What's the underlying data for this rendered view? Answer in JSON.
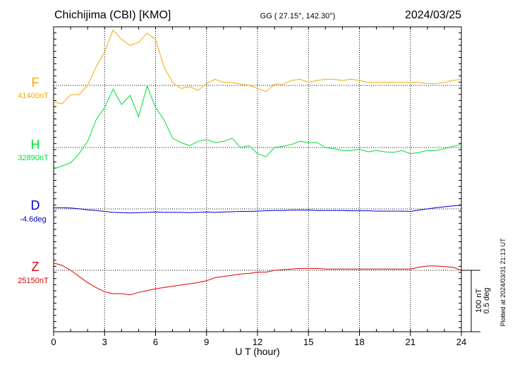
{
  "header": {
    "station": "Chichijima (CBI)  [KMO]",
    "coords": "GG ( 27.15°, 142.30°)",
    "date": "2024/03/25"
  },
  "colors": {
    "F": "#f5a800",
    "H": "#00dd33",
    "D": "#0000cc",
    "Z": "#dd0000"
  },
  "scale_bar": {
    "label_nt": "100 nT",
    "label_deg": "0.5 deg"
  },
  "plotted_note": "Plotted at 2024/03/31 21:13 UT",
  "chart_data": {
    "type": "line",
    "xlabel": "U T (hour)",
    "xlim": [
      0,
      24
    ],
    "x_ticks": [
      "0",
      "3",
      "6",
      "9",
      "12",
      "15",
      "18",
      "21",
      "24"
    ],
    "grid": true,
    "scale_per_division": {
      "nT": 100,
      "deg": 0.5
    },
    "x": [
      0,
      0.5,
      1,
      1.5,
      2,
      2.5,
      3,
      3.5,
      4,
      4.5,
      5,
      5.5,
      6,
      6.5,
      7,
      7.5,
      8,
      8.5,
      9,
      9.5,
      10,
      10.5,
      11,
      11.5,
      12,
      12.5,
      13,
      13.5,
      14,
      14.5,
      15,
      15.5,
      16,
      16.5,
      17,
      17.5,
      18,
      18.5,
      19,
      19.5,
      20,
      20.5,
      21,
      21.5,
      22,
      22.5,
      23,
      23.5,
      24
    ],
    "series": [
      {
        "name": "F",
        "baseline_label": "41400nT",
        "baseline_value": 41400,
        "unit": "nT",
        "values": [
          41373,
          41370,
          41385,
          41385,
          41400,
          41430,
          41455,
          41490,
          41475,
          41465,
          41470,
          41485,
          41475,
          41430,
          41405,
          41395,
          41398,
          41392,
          41403,
          41410,
          41405,
          41405,
          41402,
          41400,
          41395,
          41390,
          41402,
          41402,
          41408,
          41410,
          41405,
          41408,
          41410,
          41410,
          41408,
          41410,
          41408,
          41405,
          41405,
          41405,
          41405,
          41405,
          41405,
          41405,
          41403,
          41403,
          41405,
          41408,
          41410
        ]
      },
      {
        "name": "H",
        "baseline_label": "32890nT",
        "baseline_value": 32890,
        "unit": "nT",
        "values": [
          32855,
          32860,
          32865,
          32880,
          32900,
          32935,
          32955,
          32985,
          32960,
          32975,
          32940,
          32990,
          32955,
          32935,
          32905,
          32898,
          32893,
          32900,
          32903,
          32898,
          32900,
          32905,
          32890,
          32893,
          32880,
          32875,
          32890,
          32892,
          32895,
          32900,
          32898,
          32898,
          32890,
          32888,
          32885,
          32885,
          32887,
          32883,
          32885,
          32883,
          32882,
          32885,
          32880,
          32882,
          32885,
          32885,
          32888,
          32892,
          32895
        ]
      },
      {
        "name": "D",
        "baseline_label": "-4.6deg",
        "baseline_value": -4.6,
        "unit": "deg",
        "values": [
          -4.59,
          -4.59,
          -4.593,
          -4.598,
          -4.608,
          -4.613,
          -4.62,
          -4.628,
          -4.63,
          -4.633,
          -4.63,
          -4.628,
          -4.625,
          -4.628,
          -4.628,
          -4.628,
          -4.63,
          -4.628,
          -4.625,
          -4.628,
          -4.625,
          -4.623,
          -4.62,
          -4.62,
          -4.618,
          -4.615,
          -4.613,
          -4.613,
          -4.61,
          -4.61,
          -4.61,
          -4.613,
          -4.613,
          -4.613,
          -4.613,
          -4.615,
          -4.615,
          -4.615,
          -4.618,
          -4.618,
          -4.618,
          -4.618,
          -4.62,
          -4.61,
          -4.6,
          -4.59,
          -4.583,
          -4.575,
          -4.57
        ]
      },
      {
        "name": "Z",
        "baseline_label": "25150nT",
        "baseline_value": 25150,
        "unit": "nT",
        "values": [
          25162,
          25158,
          25150,
          25140,
          25130,
          25122,
          25115,
          25112,
          25112,
          25110,
          25114,
          25117,
          25120,
          25122,
          25124,
          25126,
          25128,
          25130,
          25133,
          25138,
          25140,
          25142,
          25144,
          25145,
          25147,
          25147,
          25150,
          25151,
          25152,
          25153,
          25153,
          25153,
          25152,
          25152,
          25152,
          25152,
          25152,
          25152,
          25152,
          25152,
          25152,
          25152,
          25152,
          25155,
          25157,
          25157,
          25156,
          25155,
          25150
        ]
      }
    ]
  }
}
